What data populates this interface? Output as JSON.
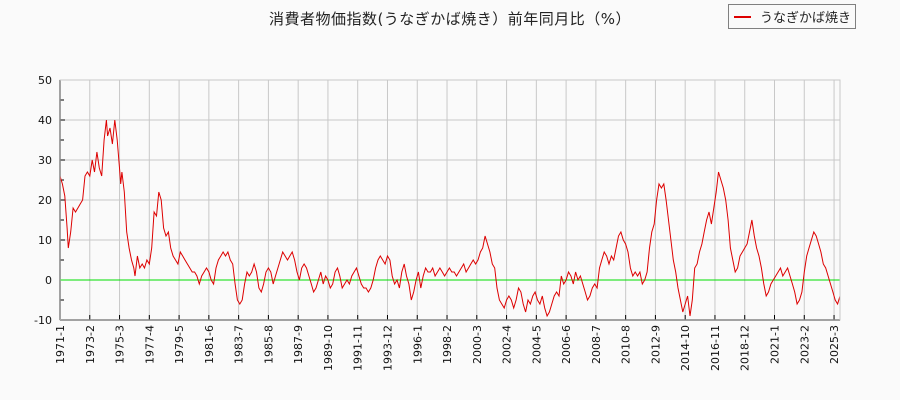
{
  "chart_data": {
    "type": "line",
    "title": "消費者物価指数(うなぎかば焼き）前年同月比（%）",
    "xlabel": "",
    "ylabel": "",
    "ylim": [
      -10,
      50
    ],
    "yticks": [
      50,
      40,
      30,
      20,
      10,
      0,
      -10
    ],
    "grid": true,
    "legend_position": "top-right",
    "x_tick_labels": [
      "1971-1",
      "1973-2",
      "1975-3",
      "1977-4",
      "1979-5",
      "1981-6",
      "1983-7",
      "1985-8",
      "1987-9",
      "1989-10",
      "1991-11",
      "1993-12",
      "1996-1",
      "1998-2",
      "2000-3",
      "2002-4",
      "2004-5",
      "2006-6",
      "2008-7",
      "2010-8",
      "2012-9",
      "2014-10",
      "2016-11",
      "2018-12",
      "2021-1",
      "2023-2",
      "2025-3"
    ],
    "x_range_months": [
      0,
      655
    ],
    "reference_line": {
      "y": 0,
      "color": "#00dd00"
    },
    "series": [
      {
        "name": "うなぎかば焼き",
        "color": "#dd0000",
        "points": [
          [
            0,
            26
          ],
          [
            2,
            24
          ],
          [
            4,
            21
          ],
          [
            6,
            13
          ],
          [
            7,
            8
          ],
          [
            9,
            12
          ],
          [
            11,
            18
          ],
          [
            13,
            17
          ],
          [
            15,
            18
          ],
          [
            17,
            19
          ],
          [
            19,
            20
          ],
          [
            21,
            26
          ],
          [
            23,
            27
          ],
          [
            25,
            26
          ],
          [
            27,
            30
          ],
          [
            29,
            27
          ],
          [
            31,
            32
          ],
          [
            33,
            28
          ],
          [
            35,
            26
          ],
          [
            37,
            35
          ],
          [
            39,
            40
          ],
          [
            40,
            36
          ],
          [
            42,
            38
          ],
          [
            44,
            34
          ],
          [
            46,
            40
          ],
          [
            48,
            35
          ],
          [
            50,
            28
          ],
          [
            51,
            24
          ],
          [
            52,
            27
          ],
          [
            54,
            22
          ],
          [
            56,
            12
          ],
          [
            58,
            8
          ],
          [
            60,
            5
          ],
          [
            62,
            3
          ],
          [
            63,
            1
          ],
          [
            65,
            6
          ],
          [
            67,
            3
          ],
          [
            69,
            4
          ],
          [
            71,
            3
          ],
          [
            73,
            5
          ],
          [
            75,
            4
          ],
          [
            77,
            8
          ],
          [
            79,
            17
          ],
          [
            81,
            16
          ],
          [
            83,
            22
          ],
          [
            85,
            20
          ],
          [
            87,
            13
          ],
          [
            89,
            11
          ],
          [
            91,
            12
          ],
          [
            93,
            8
          ],
          [
            95,
            6
          ],
          [
            97,
            5
          ],
          [
            99,
            4
          ],
          [
            101,
            7
          ],
          [
            103,
            6
          ],
          [
            105,
            5
          ],
          [
            107,
            4
          ],
          [
            109,
            3
          ],
          [
            111,
            2
          ],
          [
            113,
            2
          ],
          [
            115,
            1
          ],
          [
            117,
            -1
          ],
          [
            119,
            1
          ],
          [
            121,
            2
          ],
          [
            123,
            3
          ],
          [
            125,
            2
          ],
          [
            127,
            0
          ],
          [
            129,
            -1
          ],
          [
            131,
            3
          ],
          [
            133,
            5
          ],
          [
            135,
            6
          ],
          [
            137,
            7
          ],
          [
            139,
            6
          ],
          [
            141,
            7
          ],
          [
            143,
            5
          ],
          [
            145,
            4
          ],
          [
            147,
            -1
          ],
          [
            149,
            -5
          ],
          [
            151,
            -6
          ],
          [
            153,
            -5
          ],
          [
            155,
            -1
          ],
          [
            157,
            2
          ],
          [
            159,
            1
          ],
          [
            161,
            2
          ],
          [
            163,
            4
          ],
          [
            165,
            2
          ],
          [
            167,
            -2
          ],
          [
            169,
            -3
          ],
          [
            171,
            -1
          ],
          [
            173,
            2
          ],
          [
            175,
            3
          ],
          [
            177,
            2
          ],
          [
            179,
            -1
          ],
          [
            181,
            1
          ],
          [
            183,
            3
          ],
          [
            185,
            5
          ],
          [
            187,
            7
          ],
          [
            189,
            6
          ],
          [
            191,
            5
          ],
          [
            193,
            6
          ],
          [
            195,
            7
          ],
          [
            197,
            5
          ],
          [
            199,
            2
          ],
          [
            201,
            0
          ],
          [
            203,
            3
          ],
          [
            205,
            4
          ],
          [
            207,
            3
          ],
          [
            209,
            1
          ],
          [
            211,
            -1
          ],
          [
            213,
            -3
          ],
          [
            215,
            -2
          ],
          [
            217,
            0
          ],
          [
            219,
            2
          ],
          [
            221,
            -1
          ],
          [
            223,
            1
          ],
          [
            225,
            0
          ],
          [
            227,
            -2
          ],
          [
            229,
            -1
          ],
          [
            231,
            2
          ],
          [
            233,
            3
          ],
          [
            235,
            1
          ],
          [
            237,
            -2
          ],
          [
            239,
            -1
          ],
          [
            241,
            0
          ],
          [
            243,
            -1
          ],
          [
            245,
            1
          ],
          [
            247,
            2
          ],
          [
            249,
            3
          ],
          [
            251,
            1
          ],
          [
            253,
            -1
          ],
          [
            255,
            -2
          ],
          [
            257,
            -2
          ],
          [
            259,
            -3
          ],
          [
            261,
            -2
          ],
          [
            263,
            0
          ],
          [
            265,
            3
          ],
          [
            267,
            5
          ],
          [
            269,
            6
          ],
          [
            271,
            5
          ],
          [
            273,
            4
          ],
          [
            275,
            6
          ],
          [
            277,
            5
          ],
          [
            279,
            1
          ],
          [
            281,
            -1
          ],
          [
            283,
            0
          ],
          [
            285,
            -2
          ],
          [
            287,
            2
          ],
          [
            289,
            4
          ],
          [
            291,
            1
          ],
          [
            293,
            -1
          ],
          [
            295,
            -5
          ],
          [
            297,
            -3
          ],
          [
            299,
            0
          ],
          [
            301,
            2
          ],
          [
            303,
            -2
          ],
          [
            305,
            1
          ],
          [
            307,
            3
          ],
          [
            309,
            2
          ],
          [
            311,
            2
          ],
          [
            313,
            3
          ],
          [
            315,
            1
          ],
          [
            317,
            2
          ],
          [
            319,
            3
          ],
          [
            321,
            2
          ],
          [
            323,
            1
          ],
          [
            325,
            2
          ],
          [
            327,
            3
          ],
          [
            329,
            2
          ],
          [
            331,
            2
          ],
          [
            333,
            1
          ],
          [
            335,
            2
          ],
          [
            337,
            3
          ],
          [
            339,
            4
          ],
          [
            341,
            2
          ],
          [
            343,
            3
          ],
          [
            345,
            4
          ],
          [
            347,
            5
          ],
          [
            349,
            4
          ],
          [
            351,
            5
          ],
          [
            353,
            7
          ],
          [
            355,
            8
          ],
          [
            357,
            11
          ],
          [
            359,
            9
          ],
          [
            361,
            7
          ],
          [
            363,
            4
          ],
          [
            365,
            3
          ],
          [
            367,
            -2
          ],
          [
            369,
            -5
          ],
          [
            371,
            -6
          ],
          [
            373,
            -7
          ],
          [
            375,
            -5
          ],
          [
            377,
            -4
          ],
          [
            379,
            -5
          ],
          [
            381,
            -7
          ],
          [
            383,
            -5
          ],
          [
            385,
            -2
          ],
          [
            387,
            -3
          ],
          [
            389,
            -6
          ],
          [
            391,
            -8
          ],
          [
            393,
            -5
          ],
          [
            395,
            -6
          ],
          [
            397,
            -4
          ],
          [
            399,
            -3
          ],
          [
            401,
            -5
          ],
          [
            403,
            -6
          ],
          [
            405,
            -4
          ],
          [
            407,
            -7
          ],
          [
            409,
            -9
          ],
          [
            411,
            -8
          ],
          [
            413,
            -6
          ],
          [
            415,
            -4
          ],
          [
            417,
            -3
          ],
          [
            419,
            -4
          ],
          [
            421,
            1
          ],
          [
            423,
            -1
          ],
          [
            425,
            0
          ],
          [
            427,
            2
          ],
          [
            429,
            1
          ],
          [
            431,
            -1
          ],
          [
            433,
            2
          ],
          [
            435,
            0
          ],
          [
            437,
            1
          ],
          [
            439,
            -1
          ],
          [
            441,
            -3
          ],
          [
            443,
            -5
          ],
          [
            445,
            -4
          ],
          [
            447,
            -2
          ],
          [
            449,
            -1
          ],
          [
            451,
            -2
          ],
          [
            453,
            3
          ],
          [
            455,
            5
          ],
          [
            457,
            7
          ],
          [
            459,
            6
          ],
          [
            461,
            4
          ],
          [
            463,
            6
          ],
          [
            465,
            5
          ],
          [
            467,
            8
          ],
          [
            469,
            11
          ],
          [
            471,
            12
          ],
          [
            473,
            10
          ],
          [
            475,
            9
          ],
          [
            477,
            7
          ],
          [
            479,
            3
          ],
          [
            481,
            1
          ],
          [
            483,
            2
          ],
          [
            485,
            1
          ],
          [
            487,
            2
          ],
          [
            489,
            -1
          ],
          [
            491,
            0
          ],
          [
            493,
            2
          ],
          [
            495,
            8
          ],
          [
            497,
            12
          ],
          [
            499,
            14
          ],
          [
            501,
            20
          ],
          [
            503,
            24
          ],
          [
            505,
            23
          ],
          [
            507,
            24
          ],
          [
            509,
            20
          ],
          [
            511,
            15
          ],
          [
            513,
            10
          ],
          [
            515,
            5
          ],
          [
            517,
            2
          ],
          [
            519,
            -2
          ],
          [
            521,
            -5
          ],
          [
            523,
            -8
          ],
          [
            525,
            -6
          ],
          [
            527,
            -4
          ],
          [
            529,
            -9
          ],
          [
            531,
            -5
          ],
          [
            533,
            3
          ],
          [
            535,
            4
          ],
          [
            537,
            7
          ],
          [
            539,
            9
          ],
          [
            541,
            12
          ],
          [
            543,
            15
          ],
          [
            545,
            17
          ],
          [
            547,
            14
          ],
          [
            549,
            18
          ],
          [
            551,
            22
          ],
          [
            553,
            27
          ],
          [
            555,
            25
          ],
          [
            557,
            23
          ],
          [
            559,
            20
          ],
          [
            561,
            15
          ],
          [
            563,
            8
          ],
          [
            565,
            5
          ],
          [
            567,
            2
          ],
          [
            569,
            3
          ],
          [
            571,
            6
          ],
          [
            573,
            7
          ],
          [
            575,
            8
          ],
          [
            577,
            9
          ],
          [
            579,
            12
          ],
          [
            581,
            15
          ],
          [
            583,
            11
          ],
          [
            585,
            8
          ],
          [
            587,
            6
          ],
          [
            589,
            3
          ],
          [
            591,
            -1
          ],
          [
            593,
            -4
          ],
          [
            595,
            -3
          ],
          [
            597,
            -1
          ],
          [
            599,
            0
          ],
          [
            601,
            1
          ],
          [
            603,
            2
          ],
          [
            605,
            3
          ],
          [
            607,
            1
          ],
          [
            609,
            2
          ],
          [
            611,
            3
          ],
          [
            613,
            1
          ],
          [
            615,
            -1
          ],
          [
            617,
            -3
          ],
          [
            619,
            -6
          ],
          [
            621,
            -5
          ],
          [
            623,
            -3
          ],
          [
            625,
            2
          ],
          [
            627,
            6
          ],
          [
            629,
            8
          ],
          [
            631,
            10
          ],
          [
            633,
            12
          ],
          [
            635,
            11
          ],
          [
            637,
            9
          ],
          [
            639,
            7
          ],
          [
            641,
            4
          ],
          [
            643,
            3
          ],
          [
            645,
            1
          ],
          [
            647,
            -1
          ],
          [
            649,
            -3
          ],
          [
            651,
            -5
          ],
          [
            653,
            -6
          ],
          [
            655,
            -4
          ]
        ]
      }
    ]
  },
  "legend": {
    "label": "うなぎかば焼き",
    "color": "#dd0000"
  }
}
